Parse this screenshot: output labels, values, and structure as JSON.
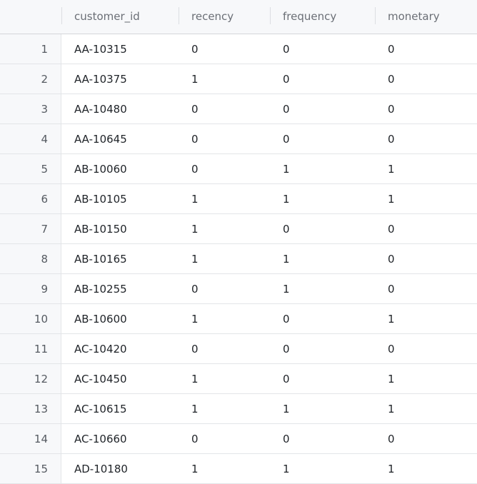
{
  "table": {
    "columns": [
      "customer_id",
      "recency",
      "frequency",
      "monetary"
    ],
    "rows": [
      {
        "index": "1",
        "values": [
          "AA-10315",
          "0",
          "0",
          "0"
        ]
      },
      {
        "index": "2",
        "values": [
          "AA-10375",
          "1",
          "0",
          "0"
        ]
      },
      {
        "index": "3",
        "values": [
          "AA-10480",
          "0",
          "0",
          "0"
        ]
      },
      {
        "index": "4",
        "values": [
          "AA-10645",
          "0",
          "0",
          "0"
        ]
      },
      {
        "index": "5",
        "values": [
          "AB-10060",
          "0",
          "1",
          "1"
        ]
      },
      {
        "index": "6",
        "values": [
          "AB-10105",
          "1",
          "1",
          "1"
        ]
      },
      {
        "index": "7",
        "values": [
          "AB-10150",
          "1",
          "0",
          "0"
        ]
      },
      {
        "index": "8",
        "values": [
          "AB-10165",
          "1",
          "1",
          "0"
        ]
      },
      {
        "index": "9",
        "values": [
          "AB-10255",
          "0",
          "1",
          "0"
        ]
      },
      {
        "index": "10",
        "values": [
          "AB-10600",
          "1",
          "0",
          "1"
        ]
      },
      {
        "index": "11",
        "values": [
          "AC-10420",
          "0",
          "0",
          "0"
        ]
      },
      {
        "index": "12",
        "values": [
          "AC-10450",
          "1",
          "0",
          "1"
        ]
      },
      {
        "index": "13",
        "values": [
          "AC-10615",
          "1",
          "1",
          "1"
        ]
      },
      {
        "index": "14",
        "values": [
          "AC-10660",
          "0",
          "0",
          "0"
        ]
      },
      {
        "index": "15",
        "values": [
          "AD-10180",
          "1",
          "1",
          "1"
        ]
      }
    ]
  }
}
